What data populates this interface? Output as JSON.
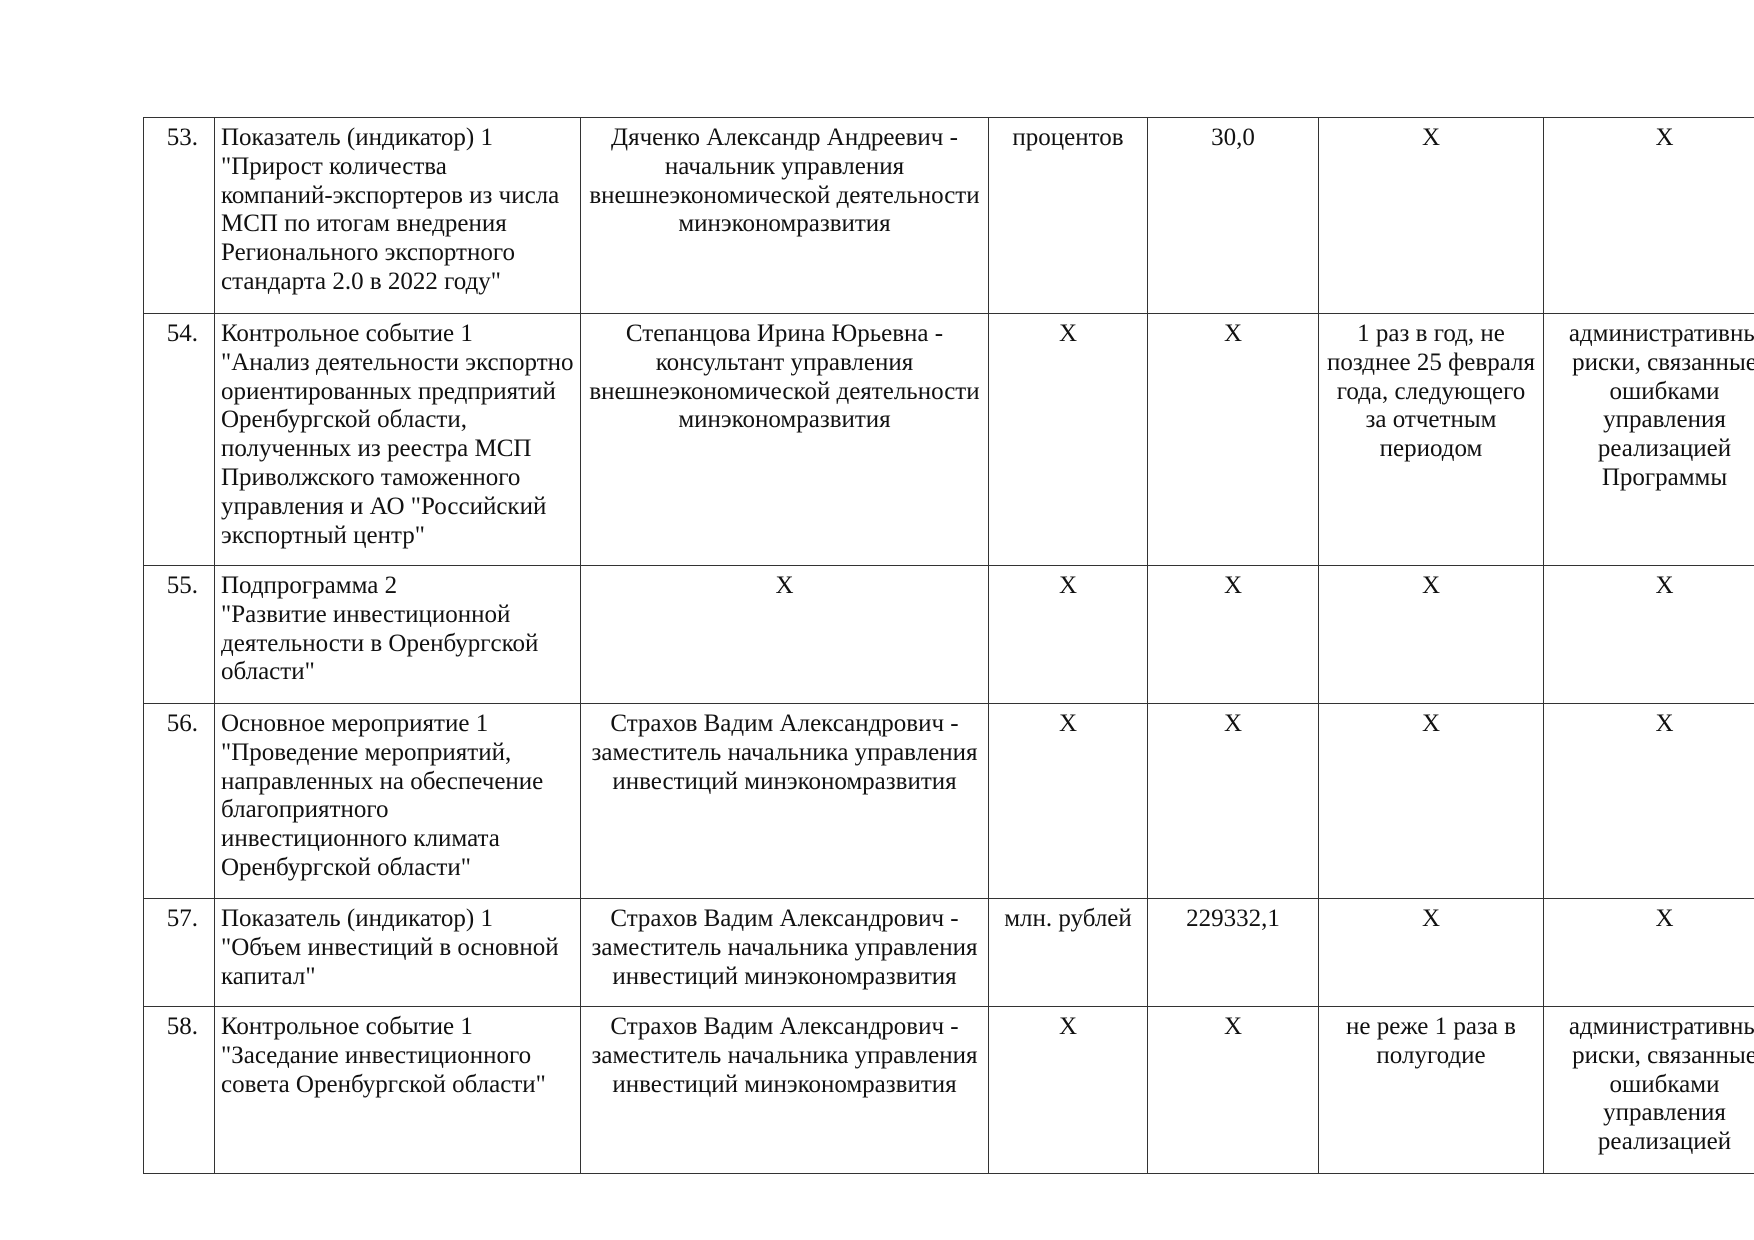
{
  "rows": [
    {
      "num": "53.",
      "name": "Показатель (индикатор) 1\n\"Прирост количества\nкомпаний-экспортеров из числа\nМСП по итогам внедрения\nРегионального экспортного\nстандарта 2.0 в 2022 году\"",
      "responsible": "Дяченко Александр Андреевич -\nначальник управления\nвнешнеэкономической деятельности\nминэкономразвития",
      "unit": "процентов",
      "value": "30,0",
      "deadline": "X",
      "risks": "X"
    },
    {
      "num": "54.",
      "name": "Контрольное событие 1\n\"Анализ деятельности экспортно\nориентированных предприятий\nОренбургской области,\nполученных из реестра МСП\nПриволжского таможенного\nуправления и АО \"Российский\nэкспортный центр\"",
      "responsible": "Степанцова Ирина Юрьевна -\nконсультант управления\nвнешнеэкономической деятельности\nминэкономразвития",
      "unit": "X",
      "value": "X",
      "deadline": "1 раз в год, не\nпозднее 25 февраля\nгода, следующего\nза отчетным\nпериодом",
      "risks": "административны\nриски, связанные\nошибками\nуправления\nреализацией\nПрограммы"
    },
    {
      "num": "55.",
      "name": "Подпрограмма 2\n\"Развитие инвестиционной\nдеятельности в Оренбургской\nобласти\"",
      "responsible": "X",
      "unit": "X",
      "value": "X",
      "deadline": "X",
      "risks": "X"
    },
    {
      "num": "56.",
      "name": "Основное мероприятие 1\n\"Проведение мероприятий,\nнаправленных на обеспечение\nблагоприятного\nинвестиционного климата\nОренбургской области\"",
      "responsible": "Страхов Вадим Александрович -\nзаместитель начальника управления\nинвестиций минэкономразвития",
      "unit": "X",
      "value": "X",
      "deadline": "X",
      "risks": "X"
    },
    {
      "num": "57.",
      "name": "Показатель (индикатор) 1\n\"Объем инвестиций в основной\nкапитал\"",
      "responsible": "Страхов Вадим Александрович -\nзаместитель начальника управления\nинвестиций минэкономразвития",
      "unit": "млн. рублей",
      "value": "229332,1",
      "deadline": "X",
      "risks": "X"
    },
    {
      "num": "58.",
      "name": "Контрольное событие 1\n\"Заседание инвестиционного\nсовета Оренбургской области\"",
      "responsible": "Страхов Вадим Александрович -\nзаместитель начальника управления\nинвестиций минэкономразвития",
      "unit": "X",
      "value": "X",
      "deadline": "не реже 1 раза в\nполугодие",
      "risks": "административны\nриски, связанные\nошибками\nуправления\nреализацией"
    }
  ]
}
